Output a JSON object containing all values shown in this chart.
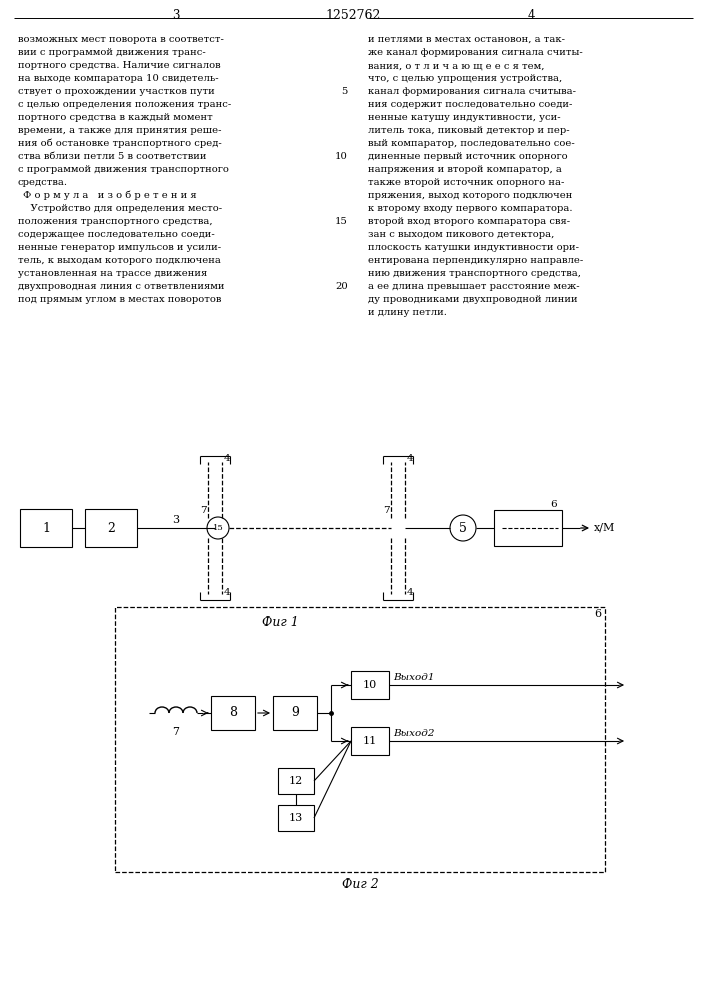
{
  "bg": "#ffffff",
  "page_num_left": "3",
  "page_num_right": "4",
  "patent_num": "1252762",
  "left_col_lines": [
    "возможных мест поворота в соответст-",
    "вии с программой движения транс-",
    "портного средства. Наличие сигналов",
    "на выходе компаратора 10 свидетель-",
    "ствует о прохождении участков пути",
    "с целью определения положения транс-",
    "портного средства в каждый момент",
    "времени, а также для принятия реше-",
    "ния об остановке транспортного сред-",
    "ства вблизи петли 5 в соответствии",
    "с программой движения транспортного",
    "средства.",
    "Ф о р м у л а   и з о б р е т е н и я",
    "    Устройство для определения место-",
    "положения транспортного средства,",
    "содержащее последовательно соеди-",
    "ненные генератор импульсов и усили-",
    "тель, к выходам которого подключена",
    "установленная на трассе движения",
    "двухпроводная линия с ответвлениями",
    "под прямым углом в местах поворотов"
  ],
  "right_col_lines": [
    "и петлями в местах остановон, а так-",
    "же канал формирования сигнала считы-",
    "вания, о т л и ч а ю щ е е с я тем,",
    "что, с целью упрощения устройства,",
    "канал формирования сигнала считыва-",
    "ния содержит последовательно соеди-",
    "ненные катушу индуктивности, уси-",
    "литель тока, пиковый детектор и пер-",
    "вый компаратор, последовательно сое-",
    "диненные первый источник опорного",
    "напряжения и второй компаратор, а",
    "также второй источник опорного на-",
    "пряжения, выход которого подключен",
    "к второму входу первого компаратора.",
    "второй вход второго компаратора свя-",
    "зан с выходом пикового детектора,",
    "плоскость катушки индуктивности ори-",
    "ентирована перпендикулярно направле-",
    "нию движения транспортного средства,",
    "а ее длина превышает расстояние меж-",
    "ду проводниками двухпроводной линии",
    "и длину петли."
  ],
  "line_numbers": {
    "4": "5",
    "9": "10",
    "14": "15",
    "19": "20"
  },
  "fig1_caption": "Фиг 1",
  "fig2_caption": "Фиг 2"
}
